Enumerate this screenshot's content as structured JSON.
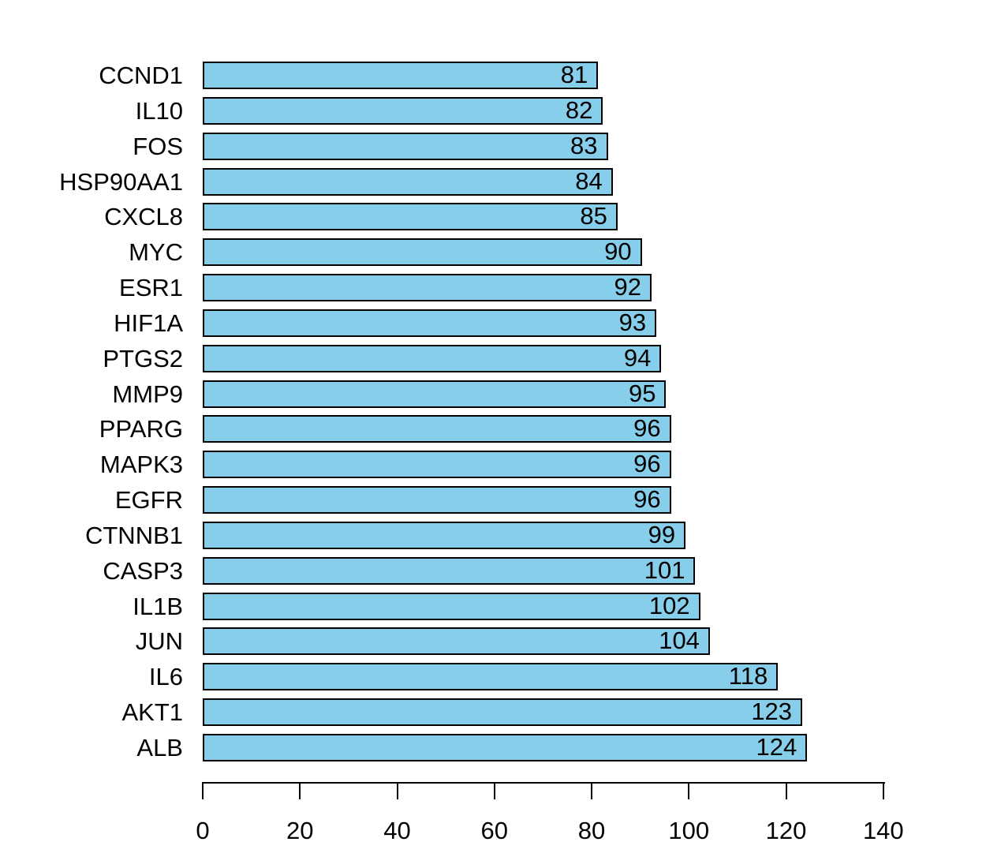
{
  "chart_data": {
    "type": "bar",
    "orientation": "horizontal",
    "title": "",
    "xlabel": "",
    "ylabel": "",
    "categories": [
      "CCND1",
      "IL10",
      "FOS",
      "HSP90AA1",
      "CXCL8",
      "MYC",
      "ESR1",
      "HIF1A",
      "PTGS2",
      "MMP9",
      "PPARG",
      "MAPK3",
      "EGFR",
      "CTNNB1",
      "CASP3",
      "IL1B",
      "JUN",
      "IL6",
      "AKT1",
      "ALB"
    ],
    "values": [
      81,
      82,
      83,
      84,
      85,
      90,
      92,
      93,
      94,
      95,
      96,
      96,
      96,
      99,
      101,
      102,
      104,
      118,
      123,
      124
    ],
    "value_labels": [
      "81",
      "82",
      "83",
      "84",
      "85",
      "90",
      "92",
      "93",
      "94",
      "95",
      "96",
      "96",
      "96",
      "99",
      "101",
      "102",
      "104",
      "118",
      "123",
      "124"
    ],
    "xlim": [
      0,
      140
    ],
    "x_ticks": [
      0,
      20,
      40,
      60,
      80,
      100,
      120,
      140
    ],
    "grid": false,
    "legend": null,
    "bar_fill": "#87CEEB",
    "bar_border": "#000000",
    "axis_color": "#000000",
    "text_color": "#000000",
    "background": "#FFFFFF"
  }
}
